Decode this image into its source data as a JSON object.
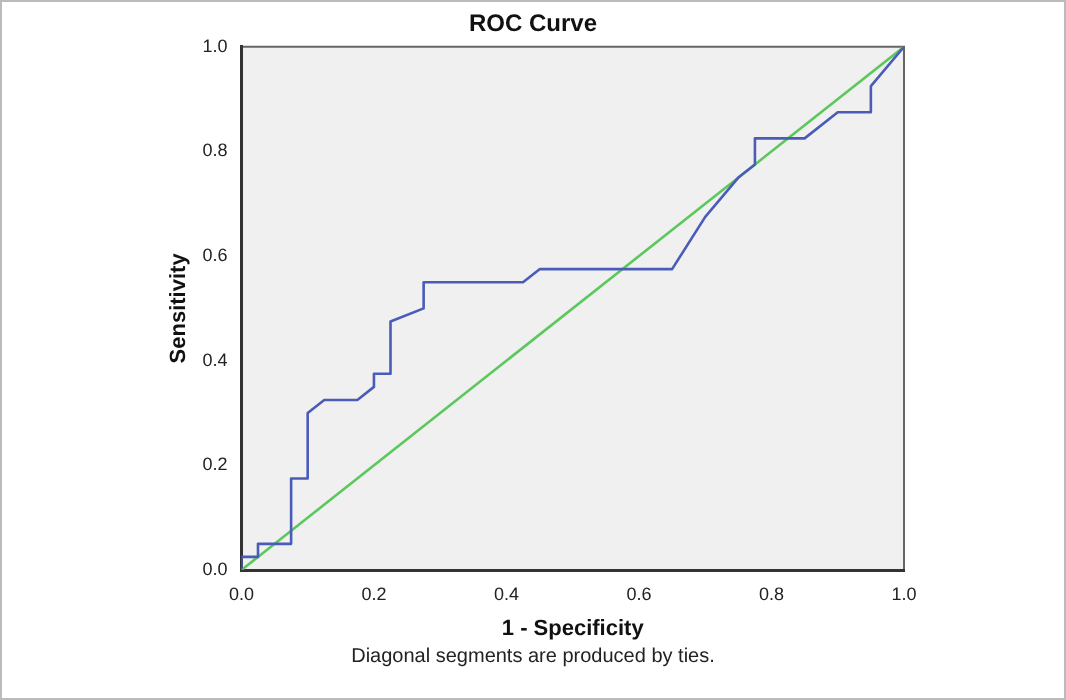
{
  "chart_data": {
    "type": "line",
    "title": "ROC Curve",
    "xlabel": "1 - Specificity",
    "ylabel": "Sensitivity",
    "xlim": [
      0,
      1
    ],
    "ylim": [
      0,
      1
    ],
    "xticks": [
      {
        "value": 0,
        "label": "0.0"
      },
      0.2,
      0.4,
      0.6,
      0.8,
      {
        "value": 1,
        "label": "1.0"
      }
    ],
    "yticks": [
      {
        "value": 0,
        "label": "0.0"
      },
      0.2,
      0.4,
      0.6,
      0.8,
      {
        "value": 1,
        "label": "1.0"
      }
    ],
    "grid": false,
    "legend": false,
    "marker": "none",
    "line_style": "solid",
    "series": [
      {
        "color": "#4a5cb8",
        "x": [
          0,
          0,
          0.025,
          0.025,
          0.075,
          0.075,
          0.1,
          0.1,
          0.125,
          0.175,
          0.2,
          0.2,
          0.225,
          0.225,
          0.275,
          0.275,
          0.425,
          0.45,
          0.65,
          0.7,
          0.75,
          0.775,
          0.775,
          0.85,
          0.9,
          0.95,
          0.95,
          1
        ],
        "values": [
          0,
          0.025,
          0.025,
          0.05,
          0.05,
          0.175,
          0.175,
          0.3,
          0.325,
          0.325,
          0.35,
          0.375,
          0.375,
          0.475,
          0.5,
          0.55,
          0.55,
          0.575,
          0.575,
          0.675,
          0.75,
          0.775,
          0.825,
          0.825,
          0.875,
          0.875,
          0.925,
          1
        ]
      },
      {
        "color": "#5cc85c",
        "x": [
          0,
          1
        ],
        "values": [
          0,
          1
        ]
      }
    ],
    "annotations": [
      "Diagonal segments are produced by ties."
    ]
  }
}
